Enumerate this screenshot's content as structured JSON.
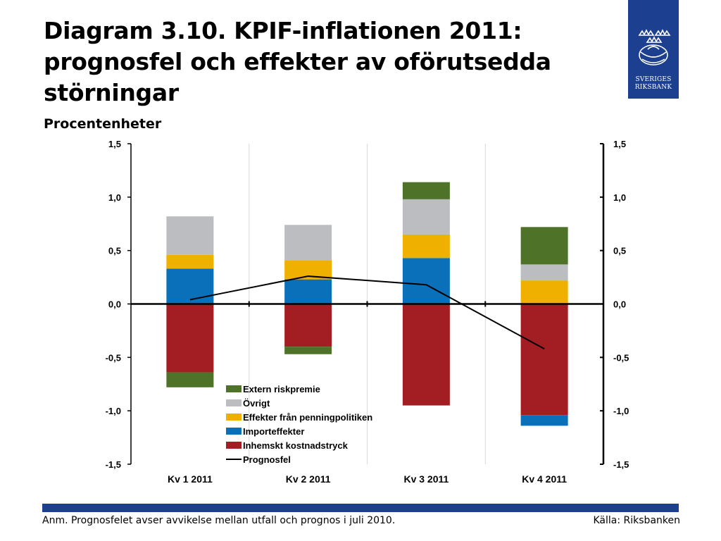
{
  "header": {
    "title_line1": "Diagram 3.10. KPIF-inflationen 2011:",
    "title_line2": "prognosfel och effekter av oförutsedda",
    "title_line3": "störningar",
    "subtitle": "Procentenheter"
  },
  "logo": {
    "line1": "SVERIGES",
    "line2": "RIKSBANK",
    "icon": "crown-emblem-icon",
    "color": "#1d3f8f"
  },
  "footer": {
    "note": "Anm. Prognosfelet avser avvikelse mellan utfall och prognos i juli 2010.",
    "source": "Källa: Riksbanken"
  },
  "chart_data": {
    "type": "bar",
    "stacked": true,
    "categories": [
      "Kv 1 2011",
      "Kv 2 2011",
      "Kv 3 2011",
      "Kv 4 2011"
    ],
    "ylim": [
      -1.5,
      1.5
    ],
    "yticks": [
      "1,5",
      "1,0",
      "0,5",
      "0,0",
      "-0,5",
      "-1,0",
      "-1,5"
    ],
    "ytick_values": [
      1.5,
      1.0,
      0.5,
      0.0,
      -0.5,
      -1.0,
      -1.5
    ],
    "grid": "vertical",
    "dual_y_axis": true,
    "legend_position": "bottom-center-inside",
    "series": [
      {
        "name": "Inhemskt kostnadstryck",
        "color": "#a31e22",
        "values": [
          -0.64,
          -0.4,
          -0.95,
          -1.04
        ]
      },
      {
        "name": "Importeffekter",
        "color": "#0a70ba",
        "values": [
          0.33,
          0.23,
          0.43,
          -0.1
        ]
      },
      {
        "name": "Effekter från penningpolitiken",
        "color": "#f0b000",
        "values": [
          0.13,
          0.18,
          0.22,
          0.22
        ]
      },
      {
        "name": "Övrigt",
        "color": "#bcbdc0",
        "values": [
          0.36,
          0.33,
          0.33,
          0.15
        ]
      },
      {
        "name": "Extern riskpremie",
        "color": "#4e7328",
        "values": [
          -0.14,
          -0.07,
          0.16,
          0.35
        ]
      }
    ],
    "line": {
      "name": "Prognosfel",
      "color": "#000000",
      "values": [
        0.04,
        0.26,
        0.18,
        -0.42
      ]
    },
    "legend_order": [
      "Extern riskpremie",
      "Övrigt",
      "Effekter från penningpolitiken",
      "Importeffekter",
      "Inhemskt kostnadstryck",
      "Prognosfel"
    ]
  }
}
